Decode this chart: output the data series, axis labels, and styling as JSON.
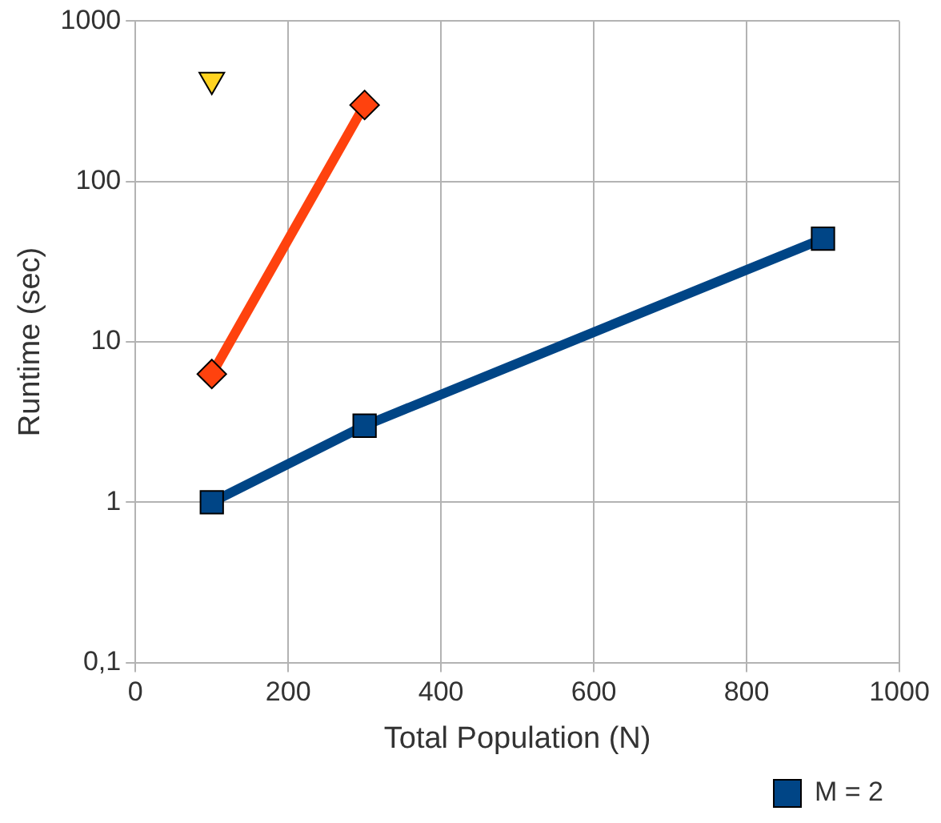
{
  "chart_data": {
    "type": "line",
    "xlabel": "Total Population (N)",
    "ylabel": "Runtime (sec)",
    "log": "y",
    "grid": true,
    "legend": "bottom right",
    "xlim": [
      0,
      1000
    ],
    "xticks": [
      0,
      200,
      400,
      600,
      800,
      1000
    ],
    "ylim": [
      0.1,
      1000
    ],
    "yticks": [
      {
        "value": 0.1,
        "label": "0,1"
      },
      1,
      10,
      100,
      1000
    ],
    "series": [
      {
        "name": "M = 2",
        "color": "#004586",
        "marker": "square",
        "x": [
          100,
          300,
          900
        ],
        "values": [
          1,
          3,
          44
        ]
      },
      {
        "color": "#ff420e",
        "marker": "diamond",
        "x": [
          100,
          300
        ],
        "values": [
          6.3,
          300
        ]
      },
      {
        "type": "scatter",
        "color": "#ffd320",
        "marker": "triangle",
        "x": [
          100
        ],
        "values": [
          430
        ]
      }
    ]
  }
}
